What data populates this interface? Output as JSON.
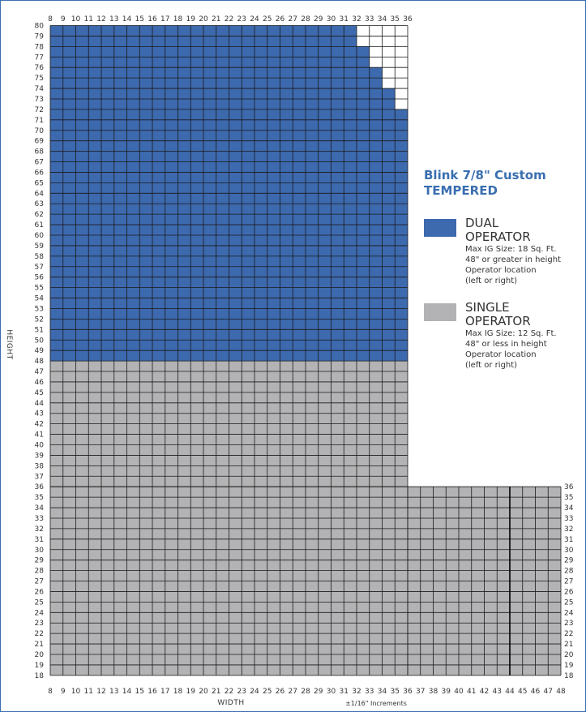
{
  "chart_data": {
    "type": "heatmap",
    "title": "Blink 7/8\" Custom",
    "subtitle": "TEMPERED",
    "xlabel": "WIDTH",
    "ylabel": "HEIGHT",
    "x_note": "±1/16\" Increments",
    "xlim": [
      8,
      48
    ],
    "ylim": [
      18,
      80
    ],
    "x_ticks_top": [
      8,
      9,
      10,
      11,
      12,
      13,
      14,
      15,
      16,
      17,
      18,
      19,
      20,
      21,
      22,
      23,
      24,
      25,
      26,
      27,
      28,
      29,
      30,
      31,
      32,
      33,
      34,
      35,
      36
    ],
    "x_ticks_bottom": [
      8,
      9,
      10,
      11,
      12,
      13,
      14,
      15,
      16,
      17,
      18,
      19,
      20,
      21,
      22,
      23,
      24,
      25,
      26,
      27,
      28,
      29,
      30,
      31,
      32,
      33,
      34,
      35,
      36,
      37,
      38,
      39,
      40,
      41,
      42,
      43,
      44,
      45,
      46,
      47,
      48
    ],
    "y_ticks_left": [
      18,
      19,
      20,
      21,
      22,
      23,
      24,
      25,
      26,
      27,
      28,
      29,
      30,
      31,
      32,
      33,
      34,
      35,
      36,
      37,
      38,
      39,
      40,
      41,
      42,
      43,
      44,
      45,
      46,
      47,
      48,
      49,
      50,
      51,
      52,
      53,
      54,
      55,
      56,
      57,
      58,
      59,
      60,
      61,
      62,
      63,
      64,
      65,
      66,
      67,
      68,
      69,
      70,
      71,
      72,
      73,
      74,
      75,
      76,
      77,
      78,
      79,
      80
    ],
    "y_ticks_right": [
      18,
      19,
      20,
      21,
      22,
      23,
      24,
      25,
      26,
      27,
      28,
      29,
      30,
      31,
      32,
      33,
      34,
      35,
      36
    ],
    "grid": true,
    "legend_placement": "right",
    "series": [
      {
        "name": "DUAL OPERATOR",
        "color": "#3d69ae",
        "description": [
          "Max IG Size: 18 Sq. Ft.",
          "48\" or greater in height",
          "Operator location",
          "(left or right)"
        ],
        "regions": [
          {
            "x": [
              8,
              36
            ],
            "y": [
              48,
              72
            ]
          },
          {
            "x": [
              8,
              35
            ],
            "y": [
              72,
              74
            ]
          },
          {
            "x": [
              8,
              34
            ],
            "y": [
              74,
              76
            ]
          },
          {
            "x": [
              8,
              33
            ],
            "y": [
              76,
              78
            ]
          },
          {
            "x": [
              8,
              32
            ],
            "y": [
              78,
              80
            ]
          }
        ]
      },
      {
        "name": "SINGLE OPERATOR",
        "color": "#b3b3b5",
        "description": [
          "Max IG Size: 12 Sq. Ft.",
          "48\" or less in height",
          "Operator location",
          "(left or right)"
        ],
        "regions": [
          {
            "x": [
              8,
              36
            ],
            "y": [
              36,
              48
            ]
          },
          {
            "x": [
              8,
              48
            ],
            "y": [
              18,
              36
            ]
          }
        ]
      }
    ],
    "outline_regions": [
      {
        "x": [
          32,
          36
        ],
        "y": [
          72,
          80
        ]
      }
    ]
  },
  "colors": {
    "grid_line": "#1a1a1a",
    "frame": "#3a6fb0",
    "heavy_line": "#000000"
  }
}
